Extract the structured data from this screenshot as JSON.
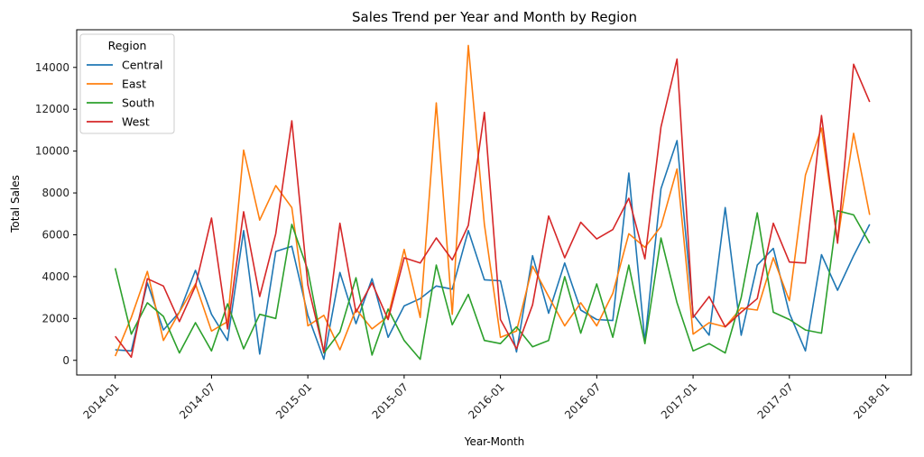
{
  "chart_data": {
    "type": "line",
    "title": "Sales Trend per Year and Month by Region",
    "xlabel": "Year-Month",
    "ylabel": "Total Sales",
    "x": [
      "2014-01",
      "2014-02",
      "2014-03",
      "2014-04",
      "2014-05",
      "2014-06",
      "2014-07",
      "2014-08",
      "2014-09",
      "2014-10",
      "2014-11",
      "2014-12",
      "2015-01",
      "2015-02",
      "2015-03",
      "2015-04",
      "2015-05",
      "2015-06",
      "2015-07",
      "2015-08",
      "2015-09",
      "2015-10",
      "2015-11",
      "2015-12",
      "2016-01",
      "2016-02",
      "2016-03",
      "2016-04",
      "2016-05",
      "2016-06",
      "2016-07",
      "2016-08",
      "2016-09",
      "2016-10",
      "2016-11",
      "2016-12",
      "2017-01",
      "2017-02",
      "2017-03",
      "2017-04",
      "2017-05",
      "2017-06",
      "2017-07",
      "2017-08",
      "2017-09",
      "2017-10",
      "2017-11",
      "2017-12"
    ],
    "x_ticks": [
      "2014-01",
      "2014-07",
      "2015-01",
      "2015-07",
      "2016-01",
      "2016-07",
      "2017-01",
      "2017-07",
      "2018-01"
    ],
    "ylim": [
      -700,
      15800
    ],
    "y_ticks": [
      0,
      2000,
      4000,
      6000,
      8000,
      10000,
      12000,
      14000
    ],
    "legend": {
      "title": "Region",
      "placement": "top-left"
    },
    "series": [
      {
        "name": "Central",
        "color": "#1f77b4",
        "values": [
          500,
          450,
          3700,
          1450,
          2300,
          4300,
          2200,
          950,
          6200,
          300,
          5200,
          5450,
          2150,
          50,
          4200,
          1750,
          3900,
          1100,
          2600,
          2950,
          3550,
          3400,
          6200,
          3850,
          3800,
          400,
          5000,
          2250,
          4650,
          2400,
          1950,
          1900,
          8950,
          900,
          8200,
          10500,
          2200,
          1200,
          7300,
          1200,
          4550,
          5350,
          2250,
          450,
          5050,
          3350,
          5000,
          6500
        ]
      },
      {
        "name": "East",
        "color": "#ff7f0e",
        "values": [
          200,
          2050,
          4250,
          950,
          2300,
          3650,
          1400,
          1850,
          10050,
          6700,
          8350,
          7300,
          1650,
          2150,
          500,
          2450,
          1500,
          2100,
          5300,
          2050,
          12300,
          2200,
          15050,
          6500,
          1100,
          1400,
          4500,
          3050,
          1650,
          2750,
          1650,
          3200,
          6050,
          5400,
          6400,
          9150,
          1250,
          1800,
          1600,
          2500,
          2400,
          4900,
          2850,
          8850,
          11100,
          5700,
          10850,
          6950
        ]
      },
      {
        "name": "South",
        "color": "#2ca02c",
        "values": [
          4400,
          1250,
          2750,
          2100,
          350,
          1800,
          450,
          2700,
          550,
          2200,
          2000,
          6500,
          4300,
          350,
          1350,
          3950,
          250,
          2450,
          950,
          50,
          4550,
          1700,
          3150,
          950,
          800,
          1600,
          650,
          950,
          4000,
          1300,
          3650,
          1100,
          4550,
          800,
          5850,
          2750,
          450,
          800,
          350,
          3000,
          7050,
          2300,
          1950,
          1450,
          1300,
          7150,
          6950,
          5600
        ]
      },
      {
        "name": "West",
        "color": "#d62728",
        "values": [
          1150,
          150,
          3900,
          3550,
          1850,
          3550,
          6800,
          1500,
          7100,
          3050,
          6050,
          11450,
          3600,
          400,
          6550,
          2300,
          3700,
          1950,
          4900,
          4650,
          5850,
          4800,
          6450,
          11850,
          1950,
          550,
          2650,
          6900,
          4900,
          6600,
          5800,
          6250,
          7750,
          4850,
          11150,
          14400,
          2050,
          3050,
          1600,
          2300,
          2950,
          6550,
          4700,
          4650,
          11700,
          5600,
          14150,
          12350
        ]
      }
    ]
  }
}
